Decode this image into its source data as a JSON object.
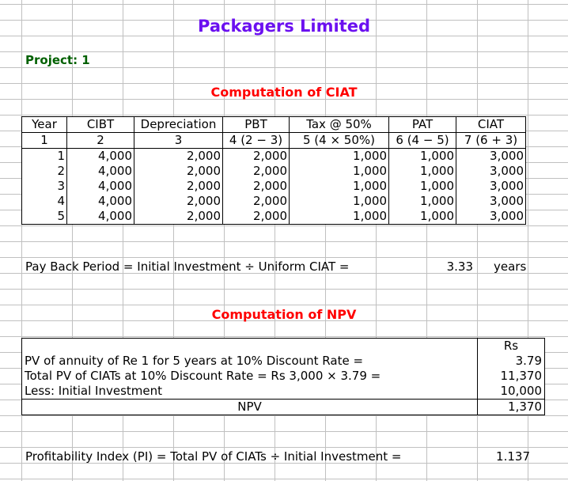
{
  "title": "Packagers Limited",
  "project": "Project: 1",
  "ciat_section": {
    "heading": "Computation of CIAT",
    "headers": [
      "Year",
      "CIBT",
      "Depreciation",
      "PBT",
      "Tax @ 50%",
      "PAT",
      "CIAT"
    ],
    "subheaders": [
      "1",
      "2",
      "3",
      "4 (2 − 3)",
      "5 (4 × 50%)",
      "6 (4 − 5)",
      "7 (6 + 3)"
    ],
    "rows": [
      [
        "1",
        "4,000",
        "2,000",
        "2,000",
        "1,000",
        "1,000",
        "3,000"
      ],
      [
        "2",
        "4,000",
        "2,000",
        "2,000",
        "1,000",
        "1,000",
        "3,000"
      ],
      [
        "3",
        "4,000",
        "2,000",
        "2,000",
        "1,000",
        "1,000",
        "3,000"
      ],
      [
        "4",
        "4,000",
        "2,000",
        "2,000",
        "1,000",
        "1,000",
        "3,000"
      ],
      [
        "5",
        "4,000",
        "2,000",
        "2,000",
        "1,000",
        "1,000",
        "3,000"
      ]
    ]
  },
  "payback": {
    "label": "Pay Back Period = Initial Investment ÷ Uniform CIAT =",
    "value": "3.33",
    "unit": "years"
  },
  "npv_section": {
    "heading": "Computation of NPV",
    "currency": "Rs",
    "rows": [
      {
        "label": "PV of annuity of Re 1 for 5 years at 10% Discount Rate =",
        "value": "3.79"
      },
      {
        "label": "Total PV of CIATs at 10% Discount Rate = Rs 3,000 × 3.79 =",
        "value": "11,370"
      },
      {
        "label": "Less: Initial Investment",
        "value": "10,000"
      },
      {
        "label": "NPV",
        "value": "1,370"
      }
    ]
  },
  "pi": {
    "label": "Profitability Index (PI) = Total PV of CIATs ÷ Initial Investment =",
    "value": "1.137"
  }
}
